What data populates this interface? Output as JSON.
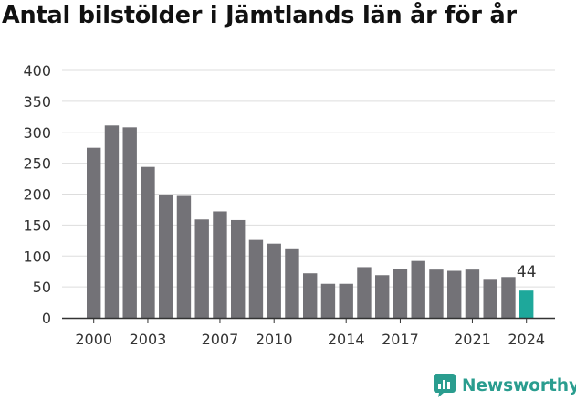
{
  "title": "Antal bilstölder i Jämtlands län år för år",
  "brand": {
    "name": "Newsworthy",
    "icon": "newsworthy-logo-icon"
  },
  "colors": {
    "bar": "#737277",
    "highlight": "#1ea89b",
    "grid": "#dddddd",
    "text": "#333333",
    "brand": "#2a9d8f"
  },
  "chart_data": {
    "type": "bar",
    "title": "Antal bilstölder i Jämtlands län år för år",
    "xlabel": "",
    "ylabel": "",
    "ylim": [
      0,
      400
    ],
    "yticks": [
      0,
      50,
      100,
      150,
      200,
      250,
      300,
      350,
      400
    ],
    "grid": true,
    "categories": [
      "2000",
      "2001",
      "2002",
      "2003",
      "2004",
      "2005",
      "2006",
      "2007",
      "2008",
      "2009",
      "2010",
      "2011",
      "2012",
      "2013",
      "2014",
      "2015",
      "2016",
      "2017",
      "2018",
      "2019",
      "2020",
      "2021",
      "2022",
      "2023",
      "2024"
    ],
    "values": [
      275,
      311,
      308,
      244,
      199,
      197,
      159,
      172,
      158,
      126,
      120,
      111,
      72,
      55,
      55,
      82,
      69,
      79,
      92,
      78,
      76,
      78,
      63,
      66,
      44
    ],
    "xtick_labels": [
      "2000",
      "2003",
      "2007",
      "2010",
      "2014",
      "2017",
      "2021",
      "2024"
    ],
    "highlight": {
      "category": "2024",
      "label": "44"
    }
  }
}
